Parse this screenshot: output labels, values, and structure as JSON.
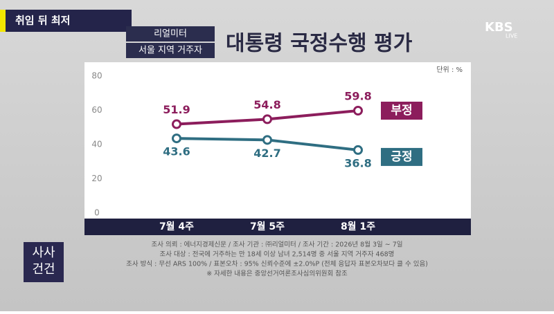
{
  "banner": "취임 뒤 최저",
  "badges": [
    "리얼미터",
    "서울 지역 거주자"
  ],
  "logo": {
    "name": "KBS",
    "sub": "LIVE"
  },
  "program": [
    "사사",
    "건건"
  ],
  "notes": [
    "조사 의뢰 : 에너지경제신문 / 조사 기관 : ㈜리얼미터 / 조사 기간 : 2026년 8월 3일 ~ 7일",
    "조사 대상 : 전국에 거주하는 만 18세 이상 남녀 2,514명 중 서울 지역 거주자 468명",
    "조사 방식 : 무선 ARS 100% / 표본오차 : 95% 신뢰수준에 ±2.0%P (전체 응답자 표본오차보다 클 수 있음)",
    "※ 자세한 내용은 중앙선거여론조사심의위원회 참조"
  ],
  "chart_data": {
    "type": "line",
    "title": "대통령 국정수행 평가",
    "unit": "단위 : %",
    "categories": [
      "7월 4주",
      "7월 5주",
      "8월 1주"
    ],
    "series": [
      {
        "name": "부정",
        "color": "#8c1d5c",
        "values": [
          51.9,
          54.8,
          59.8
        ]
      },
      {
        "name": "긍정",
        "color": "#2f6e82",
        "values": [
          43.6,
          42.7,
          36.8
        ]
      }
    ],
    "ylim": [
      0,
      80
    ],
    "yticks": [
      0,
      20,
      40,
      60,
      80
    ],
    "grid": false
  }
}
